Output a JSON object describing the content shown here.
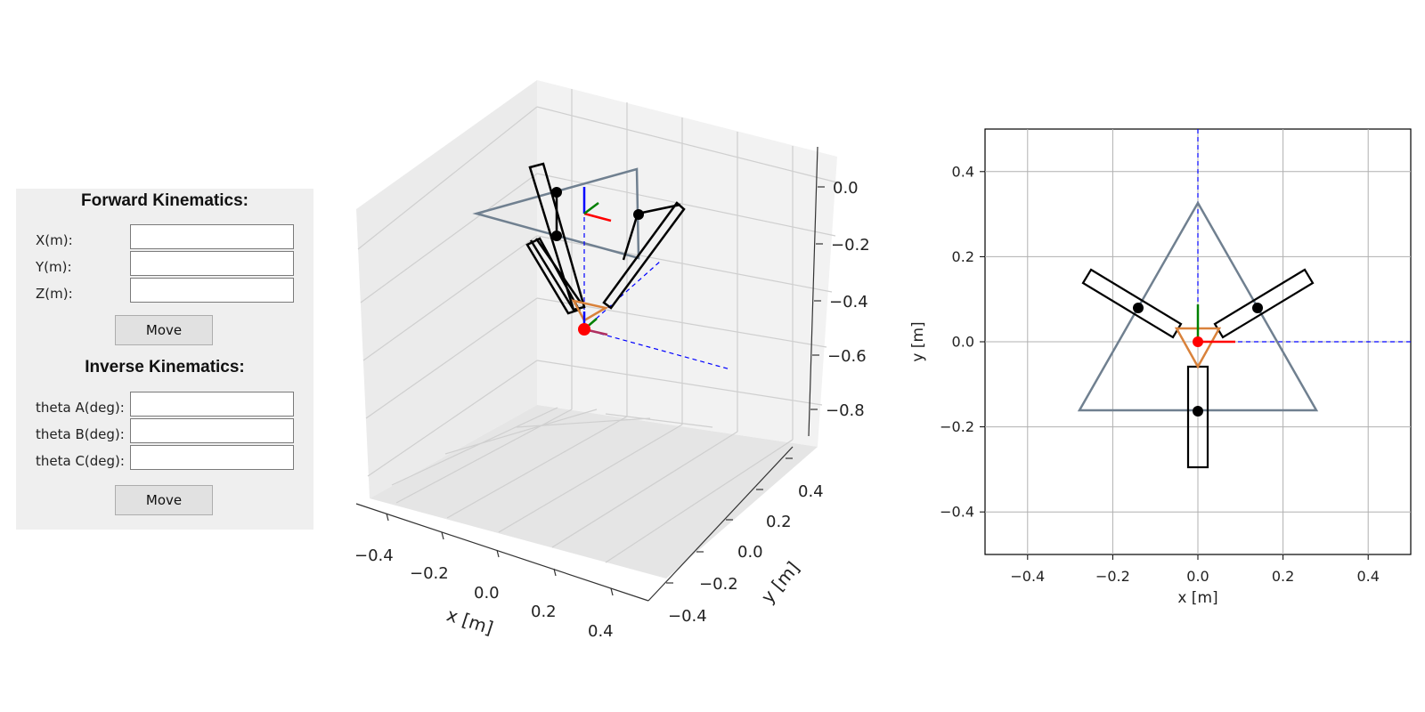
{
  "forward": {
    "title": "Forward Kinematics:",
    "fields": [
      {
        "label": "X(m):",
        "value": ""
      },
      {
        "label": "Y(m):",
        "value": ""
      },
      {
        "label": "Z(m):",
        "value": ""
      }
    ],
    "button": "Move"
  },
  "inverse": {
    "title": "Inverse Kinematics:",
    "fields": [
      {
        "label": "theta A(deg):",
        "value": ""
      },
      {
        "label": "theta B(deg):",
        "value": ""
      },
      {
        "label": "theta C(deg):",
        "value": ""
      }
    ],
    "button": "Move"
  },
  "plot3d": {
    "xlabel": "x [m]",
    "ylabel": "y [m]",
    "x_ticks": [
      "−0.4",
      "−0.2",
      "0.0",
      "0.2",
      "0.4"
    ],
    "y_ticks": [
      "0.4",
      "0.2",
      "0.0",
      "−0.2",
      "−0.4"
    ],
    "z_ticks": [
      "0.0",
      "−0.2",
      "−0.4",
      "−0.6",
      "−0.8"
    ]
  },
  "plot2d": {
    "xlabel": "x [m]",
    "ylabel": "y [m]",
    "xlim": [
      -0.5,
      0.5
    ],
    "ylim": [
      -0.5,
      0.5
    ],
    "x_ticks": [
      "−0.4",
      "−0.2",
      "0.0",
      "0.2",
      "0.4"
    ],
    "y_ticks": [
      "0.4",
      "0.2",
      "0.0",
      "−0.2",
      "−0.4"
    ]
  },
  "colors": {
    "base": "#708090",
    "platform": "#d9823b",
    "links": "#000000",
    "axis_x": "#ff0000",
    "axis_y": "#008000",
    "axis_z": "#0000ff",
    "end_effector": "#ff0000",
    "guide": "#0000ff"
  }
}
